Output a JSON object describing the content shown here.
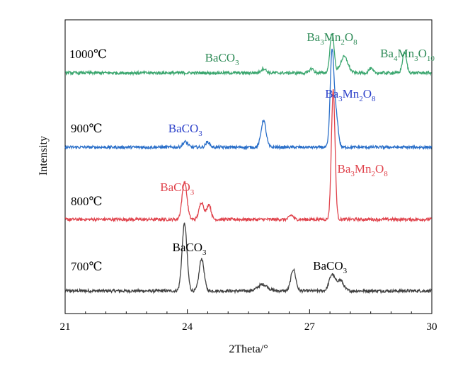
{
  "chart_data": {
    "type": "line",
    "title": "",
    "xlabel": "2Theta/°",
    "ylabel": "Intensity",
    "xlim": [
      21,
      30
    ],
    "xticks": [
      "21",
      "24",
      "27",
      "30"
    ],
    "yticks_shown": false,
    "grid": false,
    "legend": "none",
    "series": [
      {
        "name": "700℃",
        "color": "#404040",
        "baseline": 0.5,
        "peaks": [
          {
            "x": 23.93,
            "h": 12.5,
            "w": 0.06
          },
          {
            "x": 24.35,
            "h": 6.0,
            "w": 0.06
          },
          {
            "x": 25.85,
            "h": 1.2,
            "w": 0.12
          },
          {
            "x": 26.6,
            "h": 4.0,
            "w": 0.06
          },
          {
            "x": 27.55,
            "h": 3.0,
            "w": 0.07
          },
          {
            "x": 27.75,
            "h": 2.0,
            "w": 0.08
          }
        ]
      },
      {
        "name": "800℃",
        "color": "#e0434c",
        "baseline": 0.5,
        "peaks": [
          {
            "x": 23.93,
            "h": 7.0,
            "w": 0.06
          },
          {
            "x": 24.35,
            "h": 3.2,
            "w": 0.06
          },
          {
            "x": 24.53,
            "h": 2.8,
            "w": 0.05
          },
          {
            "x": 26.55,
            "h": 0.8,
            "w": 0.05
          },
          {
            "x": 27.58,
            "h": 24.0,
            "w": 0.045
          }
        ]
      },
      {
        "name": "900℃",
        "color": "#2a6fc9",
        "baseline": 0.5,
        "peaks": [
          {
            "x": 23.95,
            "h": 1.0,
            "w": 0.06
          },
          {
            "x": 24.5,
            "h": 1.0,
            "w": 0.05
          },
          {
            "x": 25.87,
            "h": 5.0,
            "w": 0.06
          },
          {
            "x": 27.55,
            "h": 17.5,
            "w": 0.045
          },
          {
            "x": 27.65,
            "h": 6.0,
            "w": 0.05
          }
        ]
      },
      {
        "name": "1000℃",
        "color": "#3aa66e",
        "baseline": 0.5,
        "peaks": [
          {
            "x": 25.87,
            "h": 0.8,
            "w": 0.06
          },
          {
            "x": 27.05,
            "h": 0.8,
            "w": 0.05
          },
          {
            "x": 27.55,
            "h": 7.5,
            "w": 0.05
          },
          {
            "x": 27.85,
            "h": 3.0,
            "w": 0.09
          },
          {
            "x": 28.5,
            "h": 0.8,
            "w": 0.05
          },
          {
            "x": 29.33,
            "h": 3.8,
            "w": 0.05
          }
        ]
      }
    ],
    "annotations": [
      {
        "series": "1000℃",
        "color": "#2e8b57",
        "x": 24.85,
        "parts": [
          [
            "BaCO",
            ""
          ],
          [
            "3",
            "sub"
          ]
        ]
      },
      {
        "series": "1000℃",
        "color": "#2e8b57",
        "x": 27.55,
        "parts": [
          [
            "Ba",
            ""
          ],
          [
            "3",
            "sub"
          ],
          [
            "Mn",
            ""
          ],
          [
            "2",
            "sub"
          ],
          [
            "O",
            ""
          ],
          [
            "8",
            "sub"
          ]
        ]
      },
      {
        "series": "1000℃",
        "color": "#2e8b57",
        "x": 29.4,
        "parts": [
          [
            "Ba",
            ""
          ],
          [
            "4",
            "sub"
          ],
          [
            "Mn",
            ""
          ],
          [
            "3",
            "sub"
          ],
          [
            "O",
            ""
          ],
          [
            "10",
            "sub"
          ]
        ]
      },
      {
        "series": "900℃",
        "color": "#2a3fc9",
        "x": 23.95,
        "parts": [
          [
            "BaCO",
            ""
          ],
          [
            "3",
            "sub"
          ]
        ]
      },
      {
        "series": "900℃",
        "color": "#2a3fc9",
        "x": 28.0,
        "parts": [
          [
            "Ba",
            ""
          ],
          [
            "3",
            "sub"
          ],
          [
            "Mn",
            ""
          ],
          [
            "2",
            "sub"
          ],
          [
            "O",
            ""
          ],
          [
            "8",
            "sub"
          ]
        ]
      },
      {
        "series": "800℃",
        "color": "#e0434c",
        "x": 23.75,
        "parts": [
          [
            "BaCO",
            ""
          ],
          [
            "3",
            "sub"
          ]
        ]
      },
      {
        "series": "800℃",
        "color": "#e0434c",
        "x": 28.3,
        "parts": [
          [
            "Ba",
            ""
          ],
          [
            "3",
            "sub"
          ],
          [
            "Mn",
            ""
          ],
          [
            "2",
            "sub"
          ],
          [
            "O",
            ""
          ],
          [
            "8",
            "sub"
          ]
        ]
      },
      {
        "series": "700℃",
        "color": "#000000",
        "x": 24.05,
        "parts": [
          [
            "BaCO",
            ""
          ],
          [
            "3",
            "sub"
          ]
        ]
      },
      {
        "series": "700℃",
        "color": "#000000",
        "x": 27.5,
        "parts": [
          [
            "BaCO",
            ""
          ],
          [
            "3",
            "sub"
          ]
        ]
      }
    ]
  }
}
